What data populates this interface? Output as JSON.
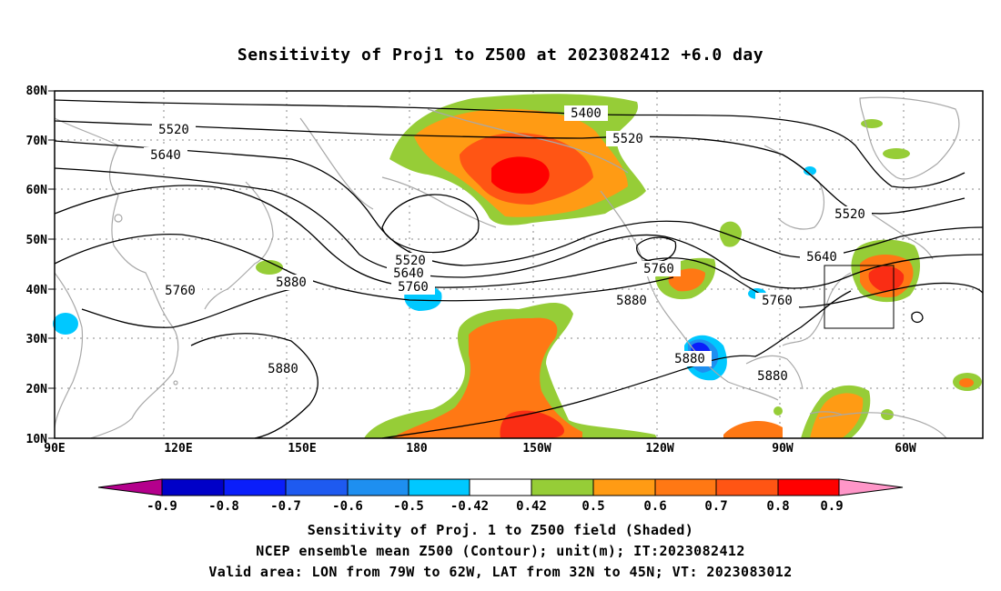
{
  "title": "Sensitivity of Proj1 to Z500 at 2023082412 +6.0 day",
  "colors": {
    "neg_0_9": "#b4008c",
    "neg_0_8": "#0000c8",
    "neg_0_7": "#0a1efa",
    "neg_0_6": "#1e5af0",
    "neg_0_5": "#1e8ff0",
    "neg_0_42": "#00c8ff",
    "neutral": "#ffffff",
    "pos_0_42": "#96cd37",
    "pos_0_5": "#ff9b14",
    "pos_0_6": "#ff7814",
    "pos_0_7": "#ff5514",
    "pos_0_8": "#fa2d14",
    "pos_0_9": "#ff0000",
    "pos_over": "#ff96c8",
    "coast": "#a8a8a8",
    "contour": "#000000"
  },
  "map": {
    "lat_ticks": [
      "10N",
      "20N",
      "30N",
      "40N",
      "50N",
      "60N",
      "70N",
      "80N"
    ],
    "lon_ticks": [
      "90E",
      "120E",
      "150E",
      "180",
      "150W",
      "120W",
      "90W",
      "60W"
    ],
    "lon_range": [
      90,
      330
    ],
    "lat_range": [
      10,
      80
    ]
  },
  "colorbar": {
    "labels": [
      "-0.9",
      "-0.8",
      "-0.7",
      "-0.6",
      "-0.5",
      "-0.42",
      "0.42",
      "0.5",
      "0.6",
      "0.7",
      "0.8",
      "0.9"
    ]
  },
  "contour_labels": [
    "5400",
    "5520",
    "5520",
    "5640",
    "5520",
    "5520",
    "5640",
    "5760",
    "5880",
    "5760",
    "5760",
    "5880",
    "5640",
    "5760",
    "5880",
    "5880",
    "5880"
  ],
  "valid_box": {
    "lon_west": "79W",
    "lon_east": "62W",
    "lat_south": "32N",
    "lat_north": "45N"
  },
  "footer": {
    "line1": "Sensitivity of Proj. 1 to Z500 field (Shaded)",
    "line2": "NCEP ensemble mean Z500 (Contour); unit(m); IT:2023082412",
    "line3": "Valid area: LON from 79W to 62W, LAT from 32N to 45N; VT: 2023083012"
  }
}
